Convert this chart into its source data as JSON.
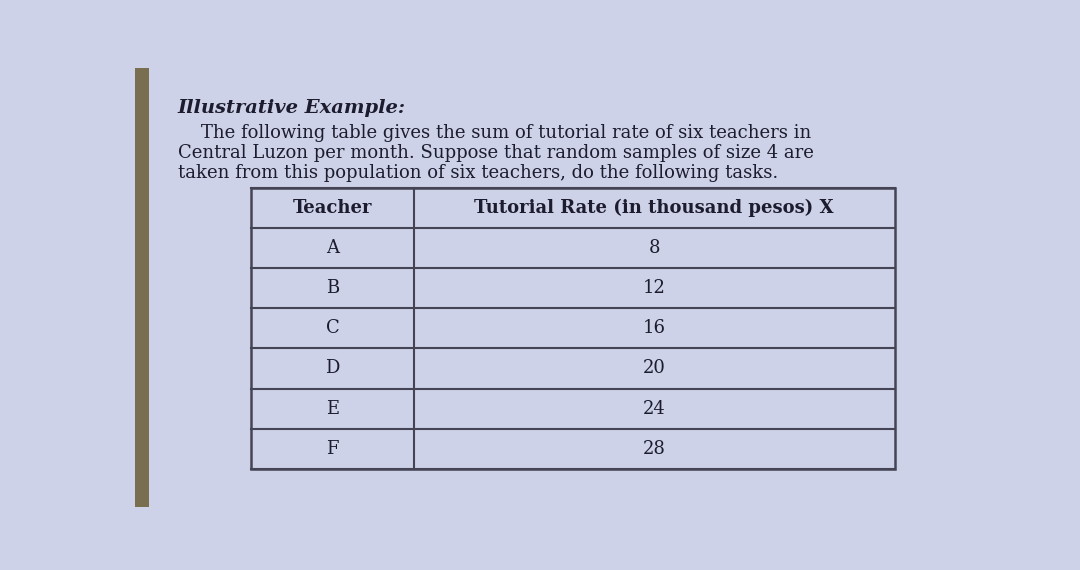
{
  "title": "Illustrative Example:",
  "para_line1": "    The following table gives the sum of tutorial rate of six teachers in",
  "para_line2": "Central Luzon per month. Suppose that random samples of size 4 are",
  "para_line3": "taken from this population of six teachers, do the following tasks.",
  "col_headers": [
    "Teacher",
    "Tutorial Rate (in thousand pesos) X"
  ],
  "teachers": [
    "A",
    "B",
    "C",
    "D",
    "E",
    "F"
  ],
  "rates": [
    "8",
    "12",
    "16",
    "20",
    "24",
    "28"
  ],
  "bg_color": "#cdd2e8",
  "table_bg": "#cdd2e8",
  "text_color": "#1c1c2e",
  "border_color": "#444455",
  "left_border_color": "#8a7a50",
  "title_fontsize": 14,
  "para_fontsize": 13,
  "table_fontsize": 13
}
